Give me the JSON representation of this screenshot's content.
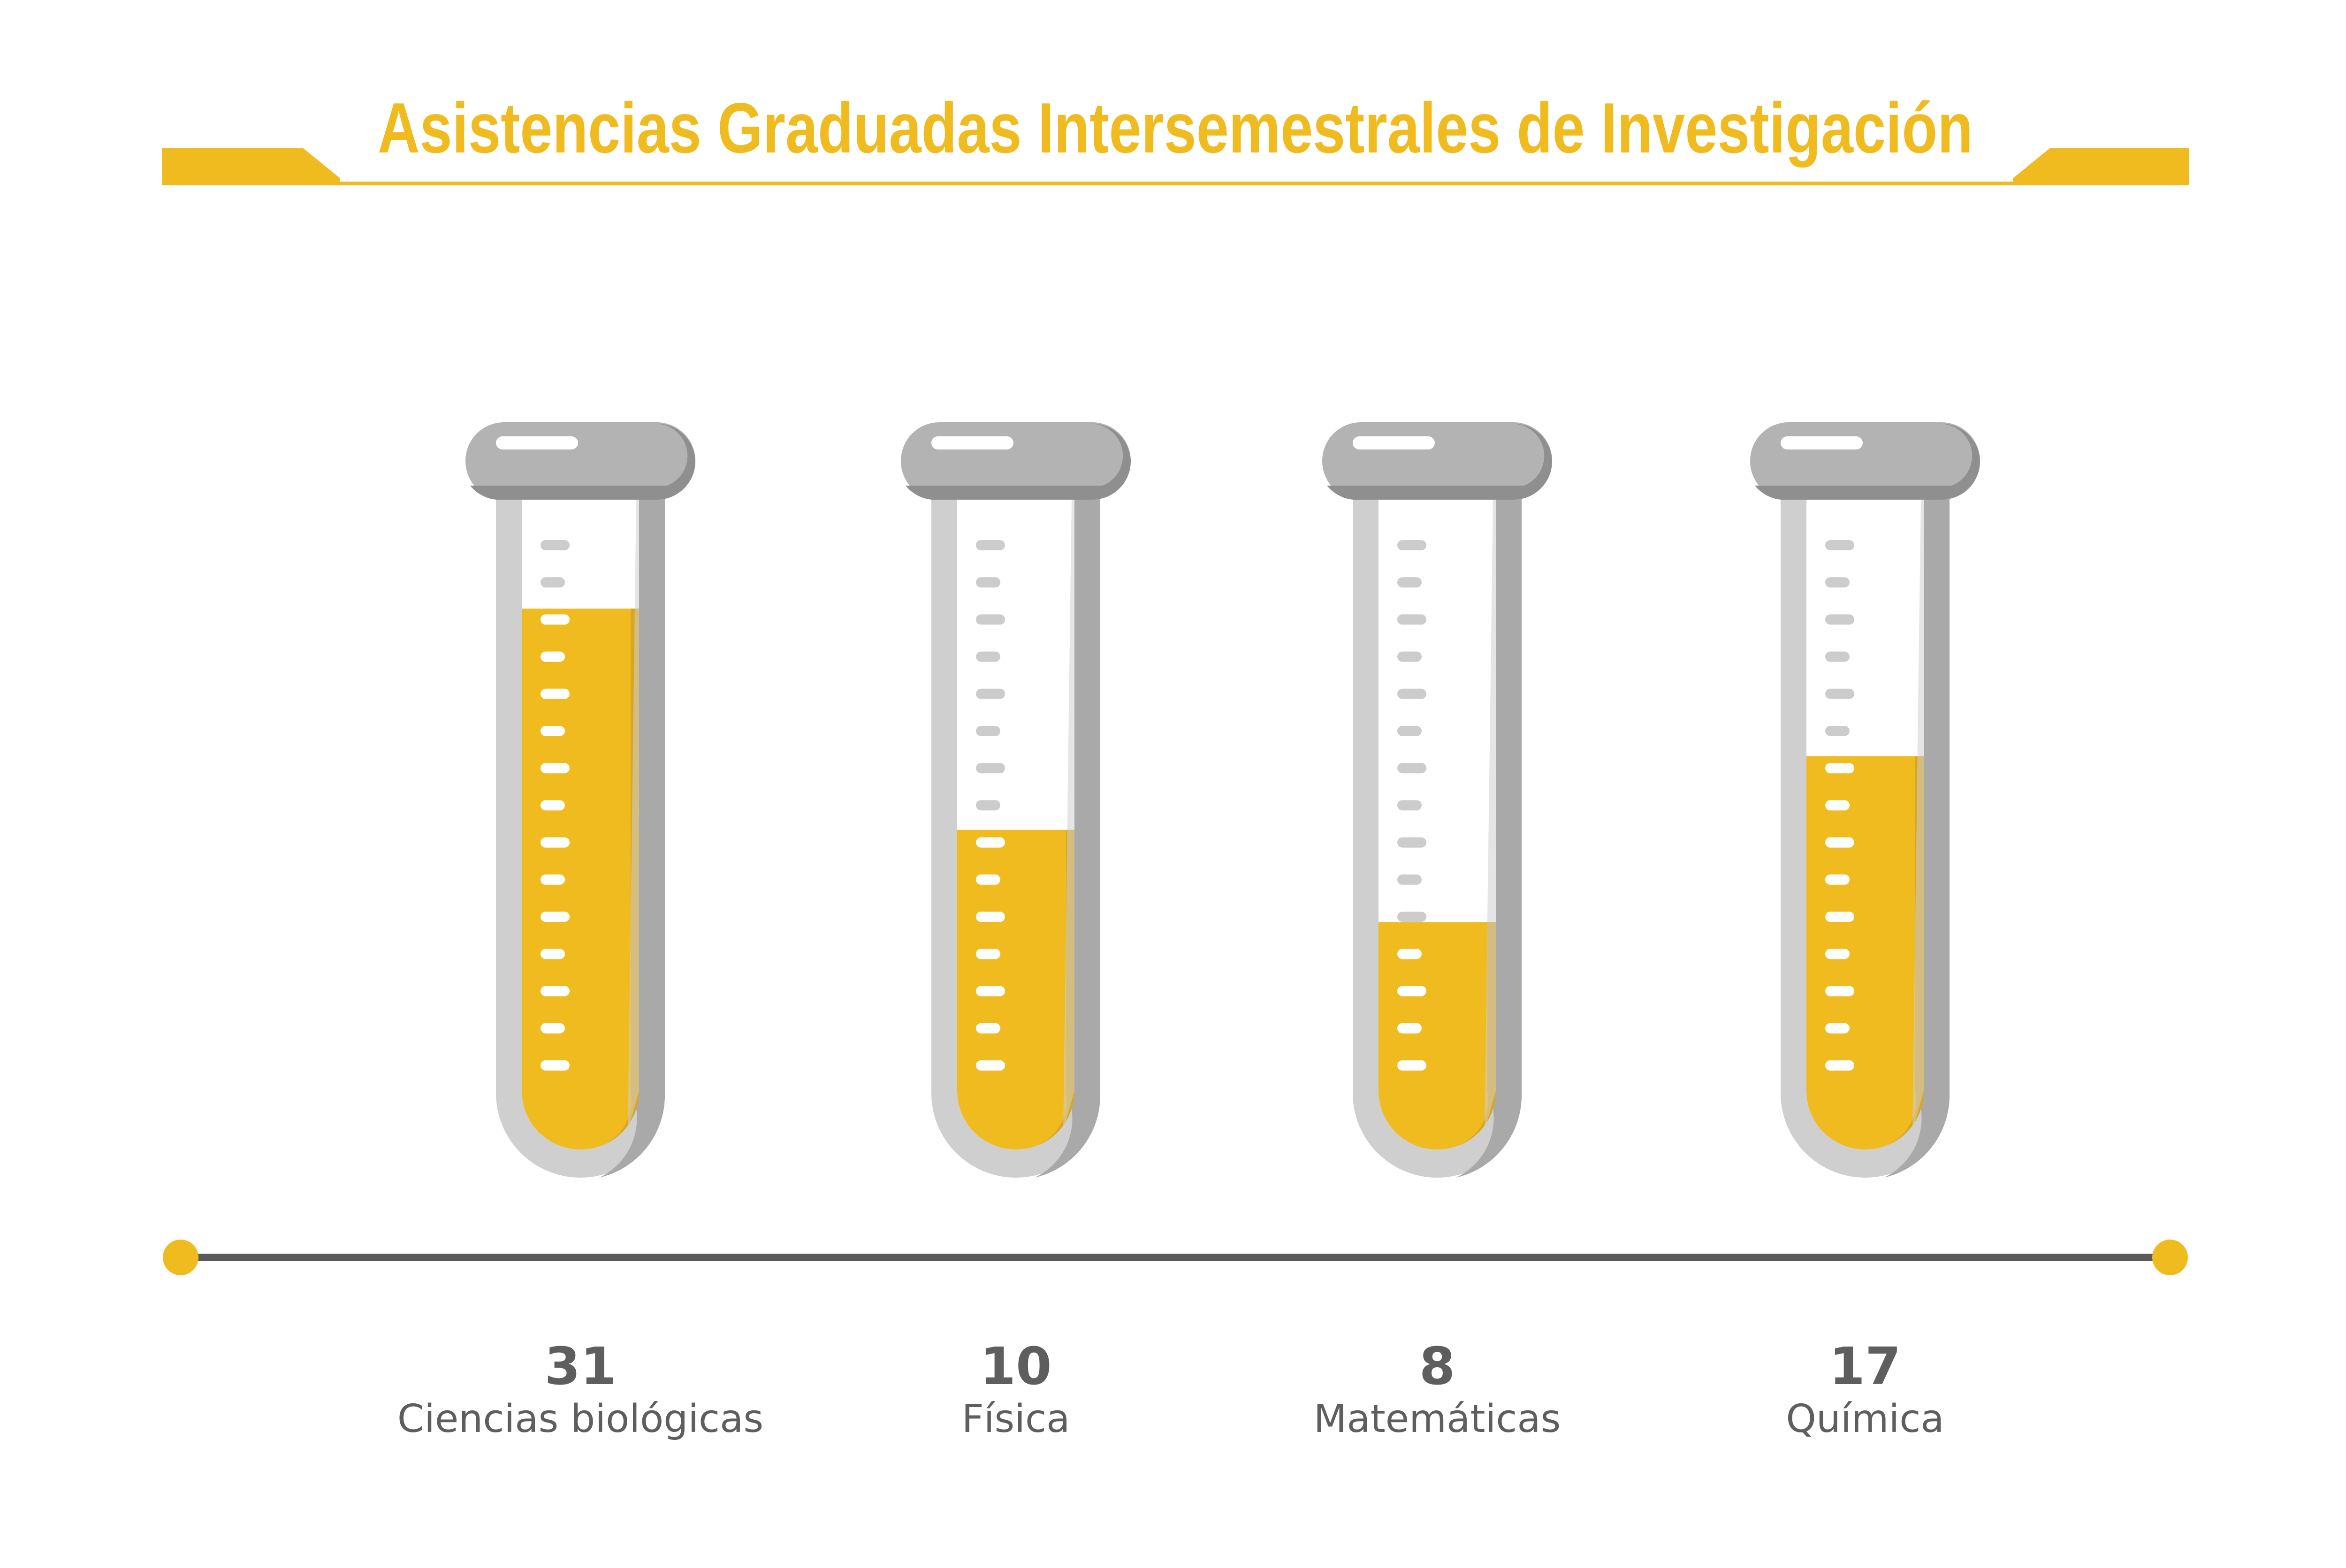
{
  "title": "Asistencias Graduadas Intersemestrales de Investigación",
  "colors": {
    "accent": "#f0bb1f",
    "accent_dark": "#d9a622",
    "tube_glass": "#cfcfcf",
    "tube_glass_dark": "#a9a9a9",
    "cap": "#b3b3b3",
    "cap_dark": "#8f8f8f",
    "tick": "#cccccc",
    "axis_line": "#5a5a5a",
    "text": "#5e5e5e"
  },
  "chart_data": {
    "type": "bar",
    "title": "Asistencias Graduadas Intersemestrales de Investigación",
    "categories": [
      "Ciencias biológicas",
      "Física",
      "Matemáticas",
      "Química"
    ],
    "values": [
      31,
      10,
      8,
      17
    ],
    "value_labels": [
      "31",
      "10",
      "8",
      "17"
    ],
    "fill_fraction": [
      0.88,
      0.52,
      0.37,
      0.64
    ],
    "xlabel": "",
    "ylabel": "",
    "grid": false,
    "legend": "none"
  }
}
